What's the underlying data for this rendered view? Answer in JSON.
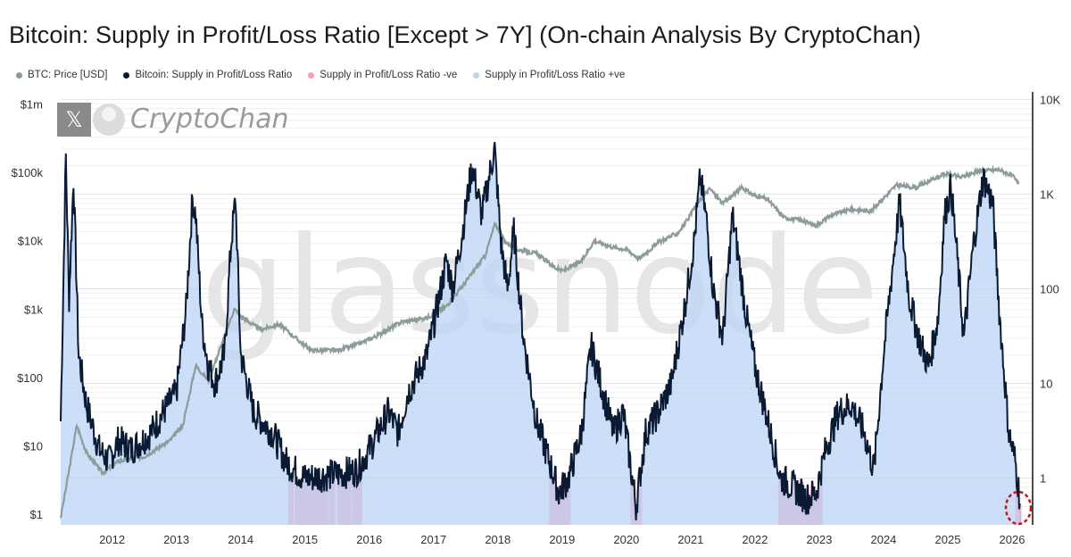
{
  "title": "Bitcoin: Supply in Profit/Loss Ratio [Except > 7Y] (On-chain Analysis By CryptoChan)",
  "legend": [
    {
      "label": "BTC: Price [USD]",
      "color": "#8c9c9c"
    },
    {
      "label": "Bitcoin: Supply in Profit/Loss Ratio",
      "color": "#0b1a33"
    },
    {
      "label": "Supply in Profit/Loss Ratio -ve",
      "color": "#f6a0b4"
    },
    {
      "label": "Supply in Profit/Loss Ratio +ve",
      "color": "#bcd4f6"
    }
  ],
  "watermarks": {
    "brand": "CryptoChan",
    "source": "glassnode",
    "x_logo": "𝕏"
  },
  "chart_data": {
    "type": "line",
    "title": "Bitcoin: Supply in Profit/Loss Ratio [Except > 7Y] (On-chain Analysis By CryptoChan)",
    "x_range": [
      2011.2,
      2026.25
    ],
    "x_ticks": [
      "2012",
      "2013",
      "2014",
      "2015",
      "2016",
      "2017",
      "2018",
      "2019",
      "2020",
      "2021",
      "2022",
      "2023",
      "2024",
      "2025",
      "2026"
    ],
    "y_left": {
      "label": "BTC: Price [USD]",
      "scale": "log",
      "range": [
        0.7,
        1500000
      ],
      "ticks": [
        {
          "label": "$1m",
          "value": 1000000
        },
        {
          "label": "$100k",
          "value": 100000
        },
        {
          "label": "$10k",
          "value": 10000
        },
        {
          "label": "$1k",
          "value": 1000
        },
        {
          "label": "$100",
          "value": 100
        },
        {
          "label": "$10",
          "value": 10
        },
        {
          "label": "$1",
          "value": 1
        }
      ]
    },
    "y_right": {
      "label": "Supply in Profit/Loss Ratio",
      "scale": "log",
      "range": [
        0.32,
        12000
      ],
      "ticks": [
        {
          "label": "10K",
          "value": 10000
        },
        {
          "label": "1K",
          "value": 1000
        },
        {
          "label": "100",
          "value": 100
        },
        {
          "label": "10",
          "value": 10
        },
        {
          "label": "1",
          "value": 1
        }
      ]
    },
    "series": [
      {
        "name": "BTC: Price [USD]",
        "color": "#8c9c9c",
        "axis": "left",
        "x": [
          2011.2,
          2011.3,
          2011.45,
          2011.6,
          2011.85,
          2012.1,
          2012.5,
          2012.9,
          2013.1,
          2013.3,
          2013.5,
          2013.9,
          2014.0,
          2014.3,
          2014.6,
          2014.9,
          2015.1,
          2015.5,
          2015.8,
          2016.1,
          2016.5,
          2016.9,
          2017.2,
          2017.5,
          2017.8,
          2017.96,
          2018.1,
          2018.3,
          2018.6,
          2018.9,
          2019.0,
          2019.3,
          2019.5,
          2019.8,
          2020.0,
          2020.2,
          2020.5,
          2020.8,
          2020.95,
          2021.1,
          2021.3,
          2021.5,
          2021.8,
          2021.95,
          2022.2,
          2022.45,
          2022.7,
          2022.95,
          2023.2,
          2023.5,
          2023.8,
          2024.0,
          2024.2,
          2024.5,
          2024.9,
          2025.0,
          2025.2,
          2025.5,
          2025.8,
          2026.0,
          2026.1
        ],
        "y": [
          0.9,
          3,
          20,
          8,
          4,
          6,
          7,
          12,
          20,
          150,
          90,
          1000,
          800,
          500,
          600,
          350,
          250,
          250,
          300,
          400,
          650,
          750,
          1100,
          2500,
          6000,
          18000,
          10000,
          7500,
          6500,
          4000,
          3600,
          5000,
          10000,
          8000,
          7500,
          5500,
          9500,
          13000,
          20000,
          35000,
          58000,
          35000,
          60000,
          48000,
          40000,
          22000,
          20000,
          16800,
          24000,
          29000,
          27000,
          42000,
          65000,
          60000,
          90000,
          95000,
          85000,
          105000,
          110000,
          90000,
          68000
        ]
      },
      {
        "name": "Bitcoin: Supply in Profit/Loss Ratio",
        "color": "#0b1a33",
        "axis": "right",
        "x": [
          2011.2,
          2011.28,
          2011.33,
          2011.4,
          2011.48,
          2011.6,
          2011.8,
          2011.95,
          2012.1,
          2012.3,
          2012.6,
          2012.8,
          2013.0,
          2013.15,
          2013.25,
          2013.3,
          2013.4,
          2013.5,
          2013.6,
          2013.75,
          2013.85,
          2013.92,
          2014.0,
          2014.2,
          2014.5,
          2014.7,
          2014.85,
          2015.0,
          2015.5,
          2015.8,
          2016.0,
          2016.3,
          2016.45,
          2016.6,
          2016.9,
          2017.05,
          2017.2,
          2017.3,
          2017.45,
          2017.6,
          2017.75,
          2017.95,
          2018.05,
          2018.15,
          2018.25,
          2018.4,
          2018.6,
          2018.8,
          2018.95,
          2019.1,
          2019.3,
          2019.45,
          2019.6,
          2019.8,
          2019.95,
          2020.15,
          2020.3,
          2020.5,
          2020.7,
          2020.9,
          2021.05,
          2021.15,
          2021.25,
          2021.35,
          2021.5,
          2021.65,
          2021.75,
          2021.85,
          2022.0,
          2022.2,
          2022.4,
          2022.6,
          2022.8,
          2022.95,
          2023.1,
          2023.3,
          2023.5,
          2023.7,
          2023.85,
          2024.0,
          2024.15,
          2024.25,
          2024.4,
          2024.55,
          2024.7,
          2024.85,
          2024.95,
          2025.05,
          2025.15,
          2025.25,
          2025.4,
          2025.55,
          2025.7,
          2025.8,
          2025.9,
          2025.95,
          2026.05,
          2026.12
        ],
        "y": [
          4,
          2500,
          80,
          1500,
          20,
          6,
          2,
          1.5,
          2.5,
          2,
          3,
          5,
          8,
          60,
          900,
          600,
          40,
          15,
          10,
          20,
          300,
          900,
          20,
          5,
          3,
          1.5,
          1.2,
          1,
          1.1,
          1.2,
          2,
          5,
          3,
          8,
          20,
          60,
          200,
          100,
          400,
          2000,
          600,
          3000,
          300,
          100,
          400,
          30,
          4,
          1.5,
          0.7,
          1,
          3,
          25,
          10,
          3,
          5,
          0.5,
          3,
          5,
          10,
          60,
          300,
          1500,
          500,
          100,
          30,
          600,
          200,
          60,
          15,
          4,
          1,
          0.8,
          0.6,
          0.7,
          2,
          5,
          6,
          3,
          1.2,
          20,
          200,
          800,
          80,
          30,
          15,
          50,
          600,
          1200,
          200,
          30,
          300,
          1500,
          800,
          60,
          8,
          3,
          1.5,
          0.6
        ]
      }
    ],
    "regions": {
      "negative_label": "Supply in Profit/Loss Ratio -ve",
      "positive_label": "Supply in Profit/Loss Ratio +ve"
    },
    "annotation": "red dashed circle marking latest value"
  }
}
